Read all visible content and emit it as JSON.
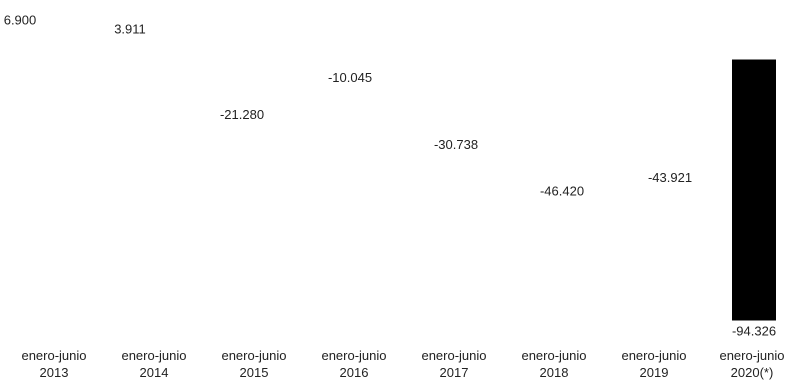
{
  "chart_data": {
    "type": "bar",
    "title": "",
    "xlabel": "",
    "ylabel": "",
    "categories": [
      [
        "enero-junio",
        "2013"
      ],
      [
        "enero-junio",
        "2014"
      ],
      [
        "enero-junio",
        "2015"
      ],
      [
        "enero-junio",
        "2016"
      ],
      [
        "enero-junio",
        "2017"
      ],
      [
        "enero-junio",
        "2018"
      ],
      [
        "enero-junio",
        "2019"
      ],
      [
        "enero-junio",
        "2020(*)"
      ]
    ],
    "values": [
      6900,
      3911,
      -21280,
      -10045,
      -30738,
      -46420,
      -43921,
      -94326
    ],
    "value_labels": [
      "6.900",
      "3.911",
      "-21.280",
      "-10.045",
      "-30.738",
      "-46.420",
      "-43.921",
      "-94.326"
    ],
    "bar_visible": [
      false,
      false,
      false,
      false,
      false,
      false,
      false,
      true
    ],
    "bar_color": "#000000",
    "grid": false,
    "legend": "none"
  }
}
